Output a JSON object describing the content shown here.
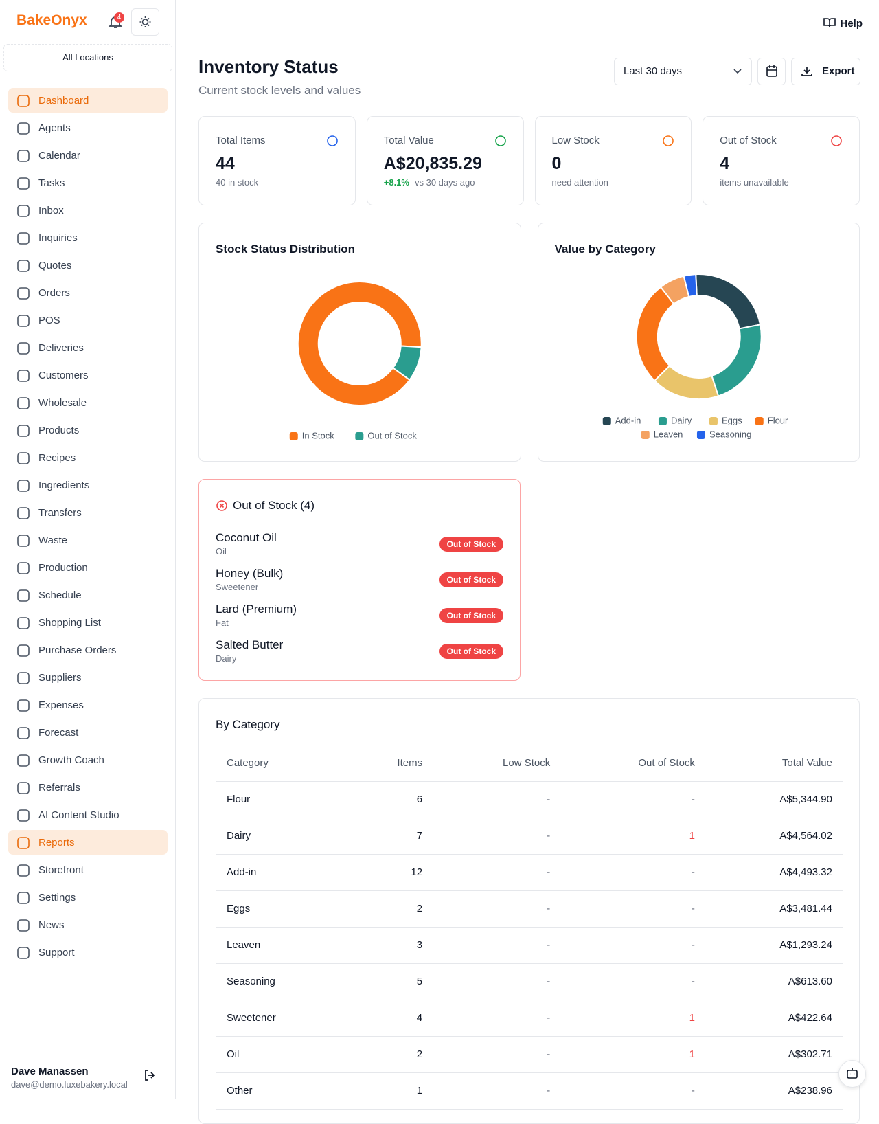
{
  "sidebar": {
    "brand": "BakeOnyx",
    "notification_count": 4,
    "location": "All Locations",
    "nav": [
      {
        "label": "Dashboard",
        "active": true
      },
      {
        "label": "Agents"
      },
      {
        "label": "Calendar"
      },
      {
        "label": "Tasks"
      },
      {
        "label": "Inbox"
      },
      {
        "label": "Inquiries"
      },
      {
        "label": "Quotes"
      },
      {
        "label": "Orders"
      },
      {
        "label": "POS"
      },
      {
        "label": "Deliveries"
      },
      {
        "label": "Customers"
      },
      {
        "label": "Wholesale"
      },
      {
        "label": "Products"
      },
      {
        "label": "Recipes"
      },
      {
        "label": "Ingredients"
      },
      {
        "label": "Transfers"
      },
      {
        "label": "Waste"
      },
      {
        "label": "Production"
      },
      {
        "label": "Schedule"
      },
      {
        "label": "Shopping List"
      },
      {
        "label": "Purchase Orders"
      },
      {
        "label": "Suppliers"
      },
      {
        "label": "Expenses"
      },
      {
        "label": "Forecast"
      },
      {
        "label": "Growth Coach"
      },
      {
        "label": "Referrals"
      },
      {
        "label": "AI Content Studio"
      },
      {
        "label": "Reports",
        "active": true
      },
      {
        "label": "Storefront"
      },
      {
        "label": "Settings"
      },
      {
        "label": "News"
      },
      {
        "label": "Support"
      }
    ],
    "user": {
      "name": "Dave Manassen",
      "email": "dave@demo.luxebakery.local"
    }
  },
  "header": {
    "help": "Help",
    "title": "Inventory Status",
    "subtitle": "Current stock levels and values",
    "range": "Last 30 days",
    "export": "Export"
  },
  "kpis": [
    {
      "label": "Total Items",
      "value": "44",
      "note": "40 in stock"
    },
    {
      "label": "Total Value",
      "value": "A$20,835.29",
      "change": "+8.1%",
      "note": "vs 30 days ago"
    },
    {
      "label": "Low Stock",
      "value": "0",
      "note": "need attention"
    },
    {
      "label": "Out of Stock",
      "value": "4",
      "note": "items unavailable"
    }
  ],
  "chart_data": [
    {
      "type": "donut",
      "title": "Stock Status Distribution",
      "categories": [
        "In Stock",
        "Out of Stock"
      ],
      "values": [
        40,
        4
      ],
      "colors": [
        "#f97316",
        "#2a9d8f"
      ]
    },
    {
      "type": "donut",
      "title": "Value by Category",
      "categories": [
        "Add-in",
        "Dairy",
        "Eggs",
        "Flour",
        "Leaven",
        "Seasoning"
      ],
      "values": [
        4493.32,
        4564.02,
        3481.44,
        5344.9,
        1293.24,
        613.6
      ],
      "colors": [
        "#264653",
        "#2a9d8f",
        "#e9c46a",
        "#f97316",
        "#f4a261",
        "#2563eb"
      ]
    }
  ],
  "out_of_stock": {
    "title": "Out of Stock (4)",
    "items": [
      {
        "name": "Coconut Oil",
        "category": "Oil",
        "status": "Out of Stock"
      },
      {
        "name": "Honey (Bulk)",
        "category": "Sweetener",
        "status": "Out of Stock"
      },
      {
        "name": "Lard (Premium)",
        "category": "Fat",
        "status": "Out of Stock"
      },
      {
        "name": "Salted Butter",
        "category": "Dairy",
        "status": "Out of Stock"
      }
    ]
  },
  "table": {
    "title": "By Category",
    "columns": [
      "Category",
      "Items",
      "Low Stock",
      "Out of Stock",
      "Total Value"
    ],
    "rows": [
      [
        "Flour",
        "6",
        "-",
        "-",
        "A$5,344.90"
      ],
      [
        "Dairy",
        "7",
        "-",
        "1",
        "A$4,564.02"
      ],
      [
        "Add-in",
        "12",
        "-",
        "-",
        "A$4,493.32"
      ],
      [
        "Eggs",
        "2",
        "-",
        "-",
        "A$3,481.44"
      ],
      [
        "Leaven",
        "3",
        "-",
        "-",
        "A$1,293.24"
      ],
      [
        "Seasoning",
        "5",
        "-",
        "-",
        "A$613.60"
      ],
      [
        "Sweetener",
        "4",
        "-",
        "1",
        "A$422.64"
      ],
      [
        "Oil",
        "2",
        "-",
        "1",
        "A$302.71"
      ],
      [
        "Other",
        "1",
        "-",
        "-",
        "A$238.96"
      ]
    ]
  }
}
